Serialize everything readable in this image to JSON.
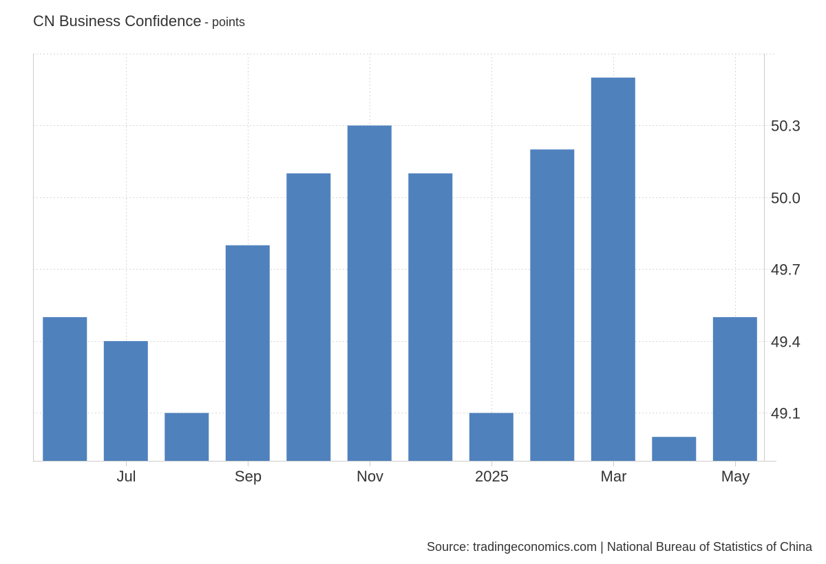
{
  "header": {
    "title": "CN Business Confidence",
    "unit": "- points"
  },
  "footer": {
    "source": "Source: tradingeconomics.com | National Bureau of Statistics of China"
  },
  "colors": {
    "bar": "#4f81bd"
  },
  "chart_data": {
    "type": "bar",
    "title": "CN Business Confidence",
    "subtitle": "- points",
    "xlabel": "",
    "ylabel": "",
    "categories": [
      "Jun 2024",
      "Jul 2024",
      "Aug 2024",
      "Sep 2024",
      "Oct 2024",
      "Nov 2024",
      "Dec 2024",
      "Jan 2025",
      "Feb 2025",
      "Mar 2025",
      "Apr 2025",
      "May 2025"
    ],
    "values": [
      49.5,
      49.4,
      49.1,
      49.8,
      50.1,
      50.3,
      50.1,
      49.1,
      50.2,
      50.5,
      49.0,
      49.5
    ],
    "x_tick_labels": [
      {
        "category": "Jul 2024",
        "label": "Jul"
      },
      {
        "category": "Sep 2024",
        "label": "Sep"
      },
      {
        "category": "Nov 2024",
        "label": "Nov"
      },
      {
        "category": "Jan 2025",
        "label": "2025"
      },
      {
        "category": "Mar 2025",
        "label": "Mar"
      },
      {
        "category": "May 2025",
        "label": "May"
      }
    ],
    "y_ticks": [
      "49.1",
      "49.4",
      "49.7",
      "50.0",
      "50.3"
    ],
    "ylim": [
      48.9,
      50.6
    ],
    "y_axis_side": "right",
    "grid": true,
    "legend": "none"
  }
}
